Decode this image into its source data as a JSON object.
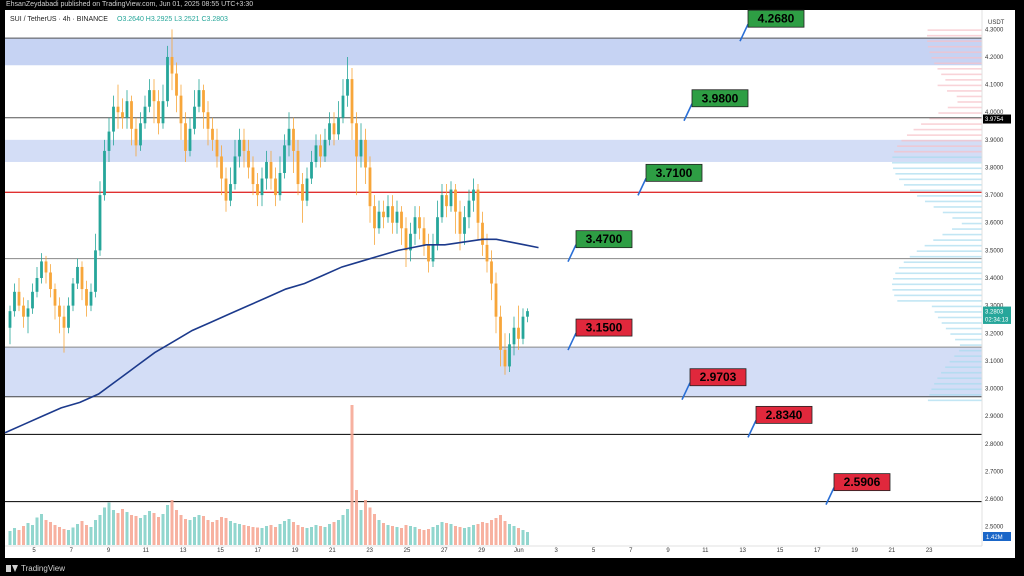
{
  "header": {
    "publisher": "EhsanZeydabadi published on TradingView.com, Jun 01, 2025 08:55 UTC+3:30",
    "symbol": "SUI / TetherUS · 4h · BINANCE",
    "ohlc": "O3.2640  H3.2925  L3.2521  C3.2803"
  },
  "footer": {
    "brand": "TradingView",
    "logo_icon": "tradingview-logo-icon"
  },
  "chart_data": {
    "type": "candlestick",
    "y_axis_unit": "USDT",
    "ylim": [
      2.43,
      4.37
    ],
    "y_ticks": [
      "4.3000",
      "4.2000",
      "4.1000",
      "4.0000",
      "3.9000",
      "3.8000",
      "3.7000",
      "3.6000",
      "3.5000",
      "3.4000",
      "3.3000",
      "3.2000",
      "3.1000",
      "3.0000",
      "2.9000",
      "2.8000",
      "2.7000",
      "2.6000",
      "2.5000"
    ],
    "x_ticks": [
      "5",
      "7",
      "9",
      "11",
      "13",
      "15",
      "17",
      "19",
      "21",
      "23",
      "25",
      "27",
      "29",
      "Jun",
      "3",
      "5",
      "7",
      "9",
      "11",
      "13",
      "15",
      "17",
      "19",
      "21",
      "23"
    ],
    "levels": [
      {
        "label": "4.2680",
        "value": 4.268,
        "color": "#2e9e44",
        "line_color": "#555555"
      },
      {
        "label": "3.9800",
        "value": 3.98,
        "color": "#2e9e44",
        "line_color": "#555555"
      },
      {
        "label": "3.7100",
        "value": 3.71,
        "color": "#2e9e44",
        "line_color": "#e03030"
      },
      {
        "label": "3.4700",
        "value": 3.47,
        "color": "#2e9e44",
        "line_color": "#888888"
      },
      {
        "label": "3.1500",
        "value": 3.15,
        "color": "#e0283c",
        "line_color": "#888888"
      },
      {
        "label": "2.9703",
        "value": 2.9703,
        "color": "#e0283c",
        "line_color": "#444444"
      },
      {
        "label": "2.8340",
        "value": 2.834,
        "color": "#e0283c",
        "line_color": "#000000"
      },
      {
        "label": "2.5906",
        "value": 2.5906,
        "color": "#e0283c",
        "line_color": "#000000"
      }
    ],
    "zones": [
      {
        "from": 4.17,
        "to": 4.27,
        "color": "#b8c8f0"
      },
      {
        "from": 2.97,
        "to": 3.15,
        "color": "#c8d4f4"
      },
      {
        "from": 3.82,
        "to": 3.9,
        "color": "#c8d4f4"
      }
    ],
    "price_labels": [
      {
        "label": "3.9754",
        "value": 3.9754,
        "color": "#000000"
      },
      {
        "label": "3.2803",
        "value": 3.2803,
        "color": "#26a69a"
      },
      {
        "label": "02:34:13",
        "value": 3.25,
        "color": "#26a69a"
      }
    ],
    "volume_label": "1.42M",
    "moving_average": {
      "name": "",
      "color": "#1c3a8c",
      "points": [
        [
          0,
          2.84
        ],
        [
          8,
          2.87
        ],
        [
          16,
          2.9
        ],
        [
          24,
          2.93
        ],
        [
          32,
          2.95
        ],
        [
          40,
          2.98
        ],
        [
          48,
          3.03
        ],
        [
          56,
          3.08
        ],
        [
          64,
          3.13
        ],
        [
          72,
          3.17
        ],
        [
          80,
          3.21
        ],
        [
          88,
          3.24
        ],
        [
          96,
          3.27
        ],
        [
          104,
          3.3
        ],
        [
          112,
          3.33
        ],
        [
          120,
          3.36
        ],
        [
          128,
          3.38
        ],
        [
          136,
          3.41
        ],
        [
          144,
          3.44
        ],
        [
          152,
          3.46
        ],
        [
          160,
          3.48
        ],
        [
          168,
          3.5
        ],
        [
          174,
          3.51
        ],
        [
          180,
          3.52
        ],
        [
          188,
          3.52
        ],
        [
          196,
          3.53
        ],
        [
          204,
          3.54
        ],
        [
          210,
          3.54
        ],
        [
          216,
          3.53
        ],
        [
          222,
          3.52
        ],
        [
          228,
          3.51
        ]
      ]
    },
    "candles": [
      [
        3.22,
        3.28,
        3.16,
        3.3
      ],
      [
        3.28,
        3.35,
        3.26,
        3.38
      ],
      [
        3.35,
        3.3,
        3.28,
        3.4
      ],
      [
        3.3,
        3.26,
        3.22,
        3.33
      ],
      [
        3.26,
        3.29,
        3.2,
        3.32
      ],
      [
        3.29,
        3.35,
        3.27,
        3.38
      ],
      [
        3.35,
        3.4,
        3.33,
        3.44
      ],
      [
        3.4,
        3.46,
        3.38,
        3.49
      ],
      [
        3.46,
        3.42,
        3.38,
        3.48
      ],
      [
        3.42,
        3.36,
        3.33,
        3.45
      ],
      [
        3.36,
        3.3,
        3.25,
        3.38
      ],
      [
        3.3,
        3.26,
        3.2,
        3.33
      ],
      [
        3.26,
        3.22,
        3.13,
        3.3
      ],
      [
        3.22,
        3.3,
        3.2,
        3.33
      ],
      [
        3.3,
        3.38,
        3.28,
        3.4
      ],
      [
        3.38,
        3.44,
        3.36,
        3.47
      ],
      [
        3.44,
        3.36,
        3.32,
        3.46
      ],
      [
        3.36,
        3.3,
        3.26,
        3.39
      ],
      [
        3.3,
        3.35,
        3.28,
        3.38
      ],
      [
        3.35,
        3.5,
        3.33,
        3.56
      ],
      [
        3.5,
        3.7,
        3.48,
        3.75
      ],
      [
        3.7,
        3.86,
        3.68,
        3.9
      ],
      [
        3.86,
        3.93,
        3.82,
        3.98
      ],
      [
        3.93,
        4.02,
        3.88,
        4.06
      ],
      [
        4.02,
        4.0,
        3.94,
        4.1
      ],
      [
        4.0,
        3.98,
        3.94,
        4.05
      ],
      [
        3.98,
        4.04,
        3.94,
        4.08
      ],
      [
        4.04,
        3.94,
        3.88,
        4.06
      ],
      [
        3.94,
        3.88,
        3.84,
        3.98
      ],
      [
        3.88,
        3.96,
        3.86,
        4.0
      ],
      [
        3.96,
        4.02,
        3.94,
        4.06
      ],
      [
        4.02,
        4.08,
        4.0,
        4.12
      ],
      [
        4.08,
        4.04,
        3.96,
        4.12
      ],
      [
        4.04,
        3.96,
        3.92,
        4.08
      ],
      [
        3.96,
        4.04,
        3.94,
        4.1
      ],
      [
        4.04,
        4.2,
        4.02,
        4.24
      ],
      [
        4.2,
        4.14,
        4.08,
        4.3
      ],
      [
        4.14,
        4.06,
        4.0,
        4.18
      ],
      [
        4.06,
        3.96,
        3.9,
        4.1
      ],
      [
        3.96,
        3.86,
        3.82,
        4.0
      ],
      [
        3.86,
        3.94,
        3.84,
        3.98
      ],
      [
        3.94,
        4.02,
        3.92,
        4.08
      ],
      [
        4.02,
        4.08,
        4.0,
        4.12
      ],
      [
        4.08,
        4.0,
        3.94,
        4.1
      ],
      [
        4.0,
        3.94,
        3.88,
        4.04
      ],
      [
        3.94,
        3.9,
        3.86,
        3.98
      ],
      [
        3.9,
        3.84,
        3.8,
        3.94
      ],
      [
        3.84,
        3.76,
        3.7,
        3.88
      ],
      [
        3.76,
        3.68,
        3.64,
        3.8
      ],
      [
        3.68,
        3.74,
        3.66,
        3.8
      ],
      [
        3.74,
        3.84,
        3.72,
        3.9
      ],
      [
        3.84,
        3.9,
        3.8,
        3.94
      ],
      [
        3.9,
        3.86,
        3.8,
        3.94
      ],
      [
        3.86,
        3.8,
        3.76,
        3.9
      ],
      [
        3.8,
        3.74,
        3.7,
        3.84
      ],
      [
        3.74,
        3.7,
        3.66,
        3.78
      ],
      [
        3.7,
        3.76,
        3.66,
        3.8
      ],
      [
        3.76,
        3.82,
        3.72,
        3.86
      ],
      [
        3.82,
        3.76,
        3.72,
        3.86
      ],
      [
        3.76,
        3.7,
        3.66,
        3.8
      ],
      [
        3.7,
        3.78,
        3.68,
        3.84
      ],
      [
        3.78,
        3.88,
        3.76,
        3.92
      ],
      [
        3.88,
        3.94,
        3.84,
        4.0
      ],
      [
        3.94,
        3.86,
        3.78,
        3.98
      ],
      [
        3.86,
        3.74,
        3.7,
        3.9
      ],
      [
        3.74,
        3.68,
        3.6,
        3.78
      ],
      [
        3.68,
        3.76,
        3.66,
        3.8
      ],
      [
        3.76,
        3.82,
        3.74,
        3.86
      ],
      [
        3.82,
        3.88,
        3.8,
        3.92
      ],
      [
        3.88,
        3.84,
        3.8,
        3.92
      ],
      [
        3.84,
        3.9,
        3.82,
        3.94
      ],
      [
        3.9,
        3.96,
        3.88,
        4.0
      ],
      [
        3.96,
        3.92,
        3.88,
        4.0
      ],
      [
        3.92,
        3.98,
        3.9,
        4.04
      ],
      [
        3.98,
        4.06,
        3.96,
        4.12
      ],
      [
        4.06,
        4.12,
        4.02,
        4.2
      ],
      [
        4.12,
        3.96,
        3.9,
        4.16
      ],
      [
        3.96,
        3.84,
        3.7,
        4.0
      ],
      [
        3.84,
        3.9,
        3.8,
        3.96
      ],
      [
        3.9,
        3.8,
        3.74,
        3.94
      ],
      [
        3.8,
        3.66,
        3.6,
        3.84
      ],
      [
        3.66,
        3.58,
        3.52,
        3.7
      ],
      [
        3.58,
        3.64,
        3.56,
        3.68
      ],
      [
        3.64,
        3.62,
        3.58,
        3.68
      ],
      [
        3.62,
        3.66,
        3.6,
        3.7
      ],
      [
        3.66,
        3.6,
        3.56,
        3.7
      ],
      [
        3.6,
        3.64,
        3.56,
        3.68
      ],
      [
        3.64,
        3.58,
        3.52,
        3.66
      ],
      [
        3.58,
        3.5,
        3.44,
        3.62
      ],
      [
        3.5,
        3.56,
        3.46,
        3.6
      ],
      [
        3.56,
        3.62,
        3.52,
        3.66
      ],
      [
        3.62,
        3.58,
        3.54,
        3.66
      ],
      [
        3.58,
        3.52,
        3.48,
        3.62
      ],
      [
        3.52,
        3.46,
        3.42,
        3.56
      ],
      [
        3.46,
        3.52,
        3.44,
        3.56
      ],
      [
        3.52,
        3.62,
        3.5,
        3.68
      ],
      [
        3.62,
        3.7,
        3.6,
        3.74
      ],
      [
        3.7,
        3.66,
        3.62,
        3.74
      ],
      [
        3.66,
        3.72,
        3.64,
        3.75
      ],
      [
        3.72,
        3.64,
        3.56,
        3.74
      ],
      [
        3.64,
        3.56,
        3.5,
        3.68
      ],
      [
        3.56,
        3.62,
        3.52,
        3.66
      ],
      [
        3.62,
        3.68,
        3.58,
        3.72
      ],
      [
        3.68,
        3.72,
        3.64,
        3.76
      ],
      [
        3.72,
        3.6,
        3.54,
        3.74
      ],
      [
        3.6,
        3.52,
        3.48,
        3.64
      ],
      [
        3.52,
        3.46,
        3.42,
        3.56
      ],
      [
        3.46,
        3.38,
        3.32,
        3.5
      ],
      [
        3.38,
        3.26,
        3.2,
        3.42
      ],
      [
        3.26,
        3.14,
        3.08,
        3.3
      ],
      [
        3.14,
        3.08,
        3.05,
        3.2
      ],
      [
        3.08,
        3.16,
        3.06,
        3.2
      ],
      [
        3.16,
        3.22,
        3.12,
        3.26
      ],
      [
        3.22,
        3.18,
        3.14,
        3.3
      ],
      [
        3.18,
        3.26,
        3.16,
        3.29
      ],
      [
        3.26,
        3.28,
        3.24,
        3.29
      ]
    ],
    "volumes": [
      0.28,
      0.34,
      0.3,
      0.38,
      0.44,
      0.4,
      0.55,
      0.62,
      0.5,
      0.46,
      0.4,
      0.36,
      0.32,
      0.3,
      0.35,
      0.42,
      0.48,
      0.4,
      0.36,
      0.5,
      0.6,
      0.75,
      0.85,
      0.7,
      0.64,
      0.72,
      0.66,
      0.6,
      0.58,
      0.54,
      0.6,
      0.68,
      0.64,
      0.56,
      0.62,
      0.8,
      0.9,
      0.7,
      0.6,
      0.52,
      0.5,
      0.56,
      0.6,
      0.58,
      0.5,
      0.46,
      0.5,
      0.56,
      0.54,
      0.48,
      0.44,
      0.42,
      0.4,
      0.38,
      0.36,
      0.35,
      0.34,
      0.38,
      0.4,
      0.36,
      0.42,
      0.48,
      0.52,
      0.46,
      0.4,
      0.36,
      0.34,
      0.36,
      0.4,
      0.38,
      0.36,
      0.42,
      0.46,
      0.5,
      0.6,
      0.72,
      2.8,
      1.1,
      0.7,
      0.9,
      0.75,
      0.62,
      0.5,
      0.44,
      0.4,
      0.38,
      0.36,
      0.34,
      0.4,
      0.38,
      0.36,
      0.32,
      0.3,
      0.32,
      0.36,
      0.4,
      0.46,
      0.44,
      0.42,
      0.38,
      0.36,
      0.34,
      0.36,
      0.4,
      0.42,
      0.46,
      0.44,
      0.5,
      0.54,
      0.6,
      0.48,
      0.42,
      0.38,
      0.34,
      0.3,
      0.26
    ]
  }
}
